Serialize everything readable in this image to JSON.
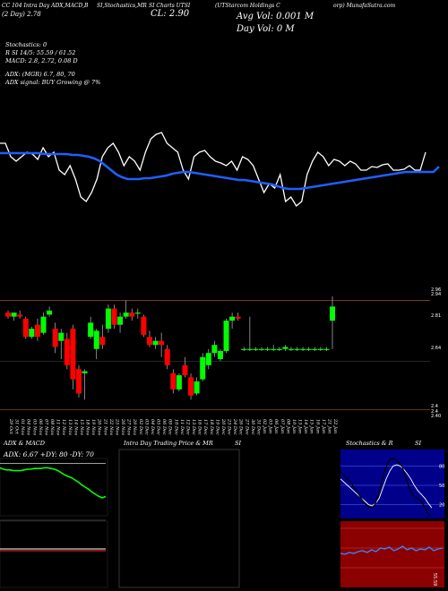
{
  "header": {
    "col1": "CC 104 Intra Day ADX,MACD,B",
    "col1b": "(2  Day)  2.78",
    "col2": "SI,Stochastics,MR",
    "col3": "SI Charts  UTSI",
    "col3b": "CL: 2.90",
    "col4": "(UTStarcom Holdings C",
    "col5": "orp) MunafaSutra.com"
  },
  "stats": {
    "avg_vol": "Avg Vol: 0.001  M",
    "day_vol": "Day Vol: 0   M",
    "stochastics": "Stochastics: 0",
    "rsi": "R          SI 14/5: 55.59 / 61.52",
    "macd": "MACD: 2.8, 2.72, 0.08  D",
    "adx": "ADX:                              (MGR) 6.7,  80,  70",
    "adx_signal": "ADX  signal:                                  BUY Growing @ 7%"
  },
  "colors": {
    "up": "#00ff00",
    "down": "#ff0000",
    "line": "#ffffff",
    "ma": "#1f5fff",
    "grid": "#8b4513"
  },
  "chart_data": [
    {
      "type": "line",
      "name": "upper indicator (price and moving average)",
      "series": [
        {
          "name": "",
          "values": [
            160,
            160,
            175,
            180,
            175,
            170,
            172,
            178,
            165,
            175,
            170,
            190,
            195,
            185,
            200,
            220,
            225,
            215,
            200,
            175,
            165,
            160,
            170,
            185,
            175,
            180,
            190,
            170,
            155,
            150,
            148,
            160,
            165,
            170,
            190,
            200,
            175,
            170,
            168,
            175,
            180,
            182,
            185,
            180,
            190,
            175,
            178,
            185,
            200,
            215,
            205,
            210,
            195,
            225,
            220,
            230,
            225,
            195,
            180,
            170,
            175,
            185,
            178,
            180,
            185,
            180,
            183,
            190,
            190,
            186,
            187,
            184,
            183,
            190,
            190,
            189,
            185,
            190,
            190,
            170
          ]
        },
        {
          "name": "",
          "values": [
            171,
            171,
            171,
            171,
            171,
            171,
            171,
            171,
            172,
            172,
            172,
            172,
            172,
            173,
            173,
            174,
            175,
            177,
            180,
            185,
            190,
            195,
            198,
            200,
            200,
            200,
            199,
            199,
            198,
            197,
            196,
            194,
            193,
            192,
            192,
            193,
            194,
            195,
            196,
            197,
            198,
            199,
            200,
            201,
            201,
            202,
            203,
            204,
            205,
            206,
            208,
            210,
            211,
            211,
            211,
            210,
            209,
            208,
            207,
            206,
            205,
            204,
            203,
            202,
            201,
            200,
            199,
            198,
            197,
            196,
            195,
            194,
            193,
            192,
            192,
            192,
            192,
            192,
            192,
            186
          ]
        }
      ]
    },
    {
      "type": "candlestick",
      "name": "daily price",
      "price_labels": [
        "2.96",
        "2.94",
        "2.81",
        "2.64",
        "2.4",
        "2.4",
        "2.40"
      ],
      "dates": [
        "29 Oct",
        "31 Oct",
        "01 Nov",
        "04 Nov",
        "05 Nov",
        "06 Nov",
        "07 Nov",
        "08 Nov",
        "11 Nov",
        "12 Nov",
        "13 Nov",
        "14 Nov",
        "15 Nov",
        "18 Nov",
        "19 Nov",
        "20 Nov",
        "21 Nov",
        "22 Nov",
        "25 Nov",
        "26 Nov",
        "27 Nov",
        "29 Nov",
        "02 Dec",
        "03 Dec",
        "04 Dec",
        "05 Dec",
        "06 Dec",
        "09 Dec",
        "10 Dec",
        "11 Dec",
        "12 Dec",
        "13 Dec",
        "16 Dec",
        "17 Dec",
        "18 Dec",
        "19 Dec",
        "20 Dec",
        "23 Dec",
        "24 Dec",
        "26 Dec",
        "27 Dec",
        "30 Dec",
        "31 Dec",
        "02 Jan",
        "03 Jan",
        "06 Jan",
        "07 Jan",
        "08 Jan",
        "10 Jan",
        "13 Jan",
        "14 Jan",
        "15 Jan",
        "16 Jan",
        "17 Jan",
        "21 Jan",
        "22 Jan"
      ],
      "candles": [
        {
          "o": 2.88,
          "h": 2.89,
          "l": 2.85,
          "c": 2.86
        },
        {
          "o": 2.86,
          "h": 2.88,
          "l": 2.84,
          "c": 2.88
        },
        {
          "o": 2.87,
          "h": 2.89,
          "l": 2.85,
          "c": 2.86
        },
        {
          "o": 2.85,
          "h": 2.86,
          "l": 2.75,
          "c": 2.76
        },
        {
          "o": 2.76,
          "h": 2.81,
          "l": 2.75,
          "c": 2.8
        },
        {
          "o": 2.82,
          "h": 2.85,
          "l": 2.74,
          "c": 2.76
        },
        {
          "o": 2.78,
          "h": 2.88,
          "l": 2.77,
          "c": 2.86
        },
        {
          "o": 2.87,
          "h": 2.91,
          "l": 2.86,
          "c": 2.89
        },
        {
          "o": 2.8,
          "h": 2.83,
          "l": 2.68,
          "c": 2.71
        },
        {
          "o": 2.74,
          "h": 2.8,
          "l": 2.65,
          "c": 2.78
        },
        {
          "o": 2.75,
          "h": 2.78,
          "l": 2.6,
          "c": 2.62
        },
        {
          "o": 2.8,
          "h": 2.82,
          "l": 2.5,
          "c": 2.55
        },
        {
          "o": 2.6,
          "h": 2.62,
          "l": 2.46,
          "c": 2.48
        },
        {
          "o": 2.58,
          "h": 2.6,
          "l": 2.45,
          "c": 2.59
        },
        {
          "o": 2.76,
          "h": 2.86,
          "l": 2.75,
          "c": 2.83
        },
        {
          "o": 2.7,
          "h": 2.8,
          "l": 2.65,
          "c": 2.79
        },
        {
          "o": 2.76,
          "h": 2.82,
          "l": 2.7,
          "c": 2.72
        },
        {
          "o": 2.8,
          "h": 2.92,
          "l": 2.78,
          "c": 2.9
        },
        {
          "o": 2.9,
          "h": 2.92,
          "l": 2.8,
          "c": 2.82
        },
        {
          "o": 2.82,
          "h": 2.88,
          "l": 2.78,
          "c": 2.86
        },
        {
          "o": 2.86,
          "h": 2.94,
          "l": 2.85,
          "c": 2.88
        },
        {
          "o": 2.88,
          "h": 2.9,
          "l": 2.84,
          "c": 2.86
        },
        {
          "o": 2.88,
          "h": 2.9,
          "l": 2.85,
          "c": 2.88
        },
        {
          "o": 2.86,
          "h": 2.87,
          "l": 2.76,
          "c": 2.77
        },
        {
          "o": 2.76,
          "h": 2.79,
          "l": 2.71,
          "c": 2.72
        },
        {
          "o": 2.72,
          "h": 2.76,
          "l": 2.7,
          "c": 2.74
        },
        {
          "o": 2.74,
          "h": 2.78,
          "l": 2.66,
          "c": 2.72
        },
        {
          "o": 2.7,
          "h": 2.72,
          "l": 2.6,
          "c": 2.62
        },
        {
          "o": 2.58,
          "h": 2.6,
          "l": 2.48,
          "c": 2.5
        },
        {
          "o": 2.5,
          "h": 2.58,
          "l": 2.49,
          "c": 2.57
        },
        {
          "o": 2.62,
          "h": 2.66,
          "l": 2.56,
          "c": 2.57
        },
        {
          "o": 2.56,
          "h": 2.58,
          "l": 2.45,
          "c": 2.47
        },
        {
          "o": 2.48,
          "h": 2.56,
          "l": 2.47,
          "c": 2.54
        },
        {
          "o": 2.55,
          "h": 2.68,
          "l": 2.54,
          "c": 2.66
        },
        {
          "o": 2.62,
          "h": 2.7,
          "l": 2.6,
          "c": 2.68
        },
        {
          "o": 2.68,
          "h": 2.74,
          "l": 2.66,
          "c": 2.72
        },
        {
          "o": 2.65,
          "h": 2.7,
          "l": 2.64,
          "c": 2.69
        },
        {
          "o": 2.69,
          "h": 2.85,
          "l": 2.68,
          "c": 2.84
        },
        {
          "o": 2.84,
          "h": 2.88,
          "l": 2.8,
          "c": 2.86
        },
        {
          "o": 2.86,
          "h": 2.88,
          "l": 2.84,
          "c": 2.85
        },
        {
          "o": 2.7,
          "h": 2.71,
          "l": 2.69,
          "c": 2.7
        },
        {
          "o": 2.7,
          "h": 2.86,
          "l": 2.69,
          "c": 2.7
        },
        {
          "o": 2.7,
          "h": 2.71,
          "l": 2.69,
          "c": 2.7
        },
        {
          "o": 2.7,
          "h": 2.71,
          "l": 2.69,
          "c": 2.7
        },
        {
          "o": 2.7,
          "h": 2.71,
          "l": 2.69,
          "c": 2.7
        },
        {
          "o": 2.7,
          "h": 2.72,
          "l": 2.69,
          "c": 2.7
        },
        {
          "o": 2.7,
          "h": 2.71,
          "l": 2.69,
          "c": 2.7
        },
        {
          "o": 2.7,
          "h": 2.72,
          "l": 2.69,
          "c": 2.71
        },
        {
          "o": 2.7,
          "h": 2.71,
          "l": 2.69,
          "c": 2.7
        },
        {
          "o": 2.7,
          "h": 2.71,
          "l": 2.69,
          "c": 2.7
        },
        {
          "o": 2.7,
          "h": 2.71,
          "l": 2.69,
          "c": 2.7
        },
        {
          "o": 2.7,
          "h": 2.71,
          "l": 2.69,
          "c": 2.7
        },
        {
          "o": 2.7,
          "h": 2.71,
          "l": 2.69,
          "c": 2.7
        },
        {
          "o": 2.7,
          "h": 2.71,
          "l": 2.69,
          "c": 2.7
        },
        {
          "o": 2.7,
          "h": 2.71,
          "l": 2.69,
          "c": 2.7
        },
        {
          "o": 2.84,
          "h": 2.96,
          "l": 2.7,
          "c": 2.91
        }
      ]
    },
    {
      "type": "line",
      "title": "ADX  & MACD",
      "label": "ADX: 6.67  +DY: 80  -DY: 70",
      "series": [
        {
          "name": "",
          "values": [
            32,
            30,
            29,
            29,
            28,
            28,
            28,
            29,
            30,
            30,
            31,
            31,
            31,
            32,
            32,
            31,
            30,
            28,
            25,
            22,
            20,
            18,
            15,
            12,
            8,
            5,
            2,
            -2,
            -5,
            -8,
            -10,
            -8
          ]
        },
        {
          "name": "",
          "values": [
            38,
            38,
            38,
            38,
            38,
            38,
            38,
            38,
            38,
            38,
            38,
            38,
            38,
            38,
            38,
            38,
            38,
            38,
            38,
            38,
            38,
            38,
            38,
            38,
            38,
            38,
            38,
            38,
            38,
            38,
            38,
            38
          ]
        }
      ]
    },
    {
      "type": "line",
      "title": "Intra  Day Trading Price  & MR",
      "title2": "SI",
      "series": []
    },
    {
      "type": "line",
      "title": "Stochastics & R",
      "title2": "SI",
      "ylabels": [
        "80",
        "50",
        "20"
      ],
      "rsi_label": "55.59",
      "series": [
        {
          "name": "",
          "values": [
            72,
            65,
            60,
            55,
            45,
            38,
            30,
            22,
            18,
            15,
            20,
            35,
            55,
            75,
            88,
            92,
            90,
            85,
            78,
            60,
            45,
            35,
            30,
            28,
            20,
            10,
            2
          ]
        },
        {
          "name": "",
          "values": [
            60,
            55,
            50,
            45,
            40,
            35,
            30,
            25,
            20,
            18,
            22,
            30,
            45,
            60,
            72,
            80,
            82,
            80,
            75,
            68,
            60,
            50,
            42,
            36,
            30,
            22,
            15
          ]
        }
      ]
    }
  ]
}
